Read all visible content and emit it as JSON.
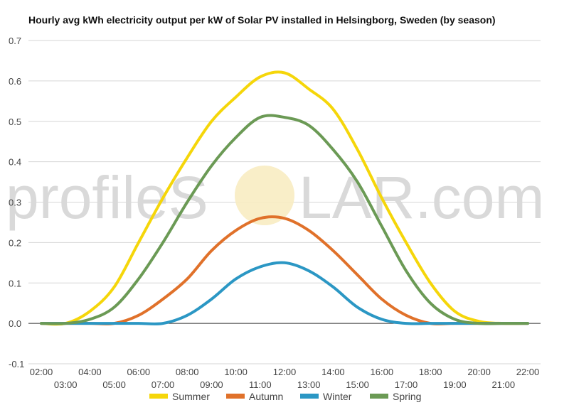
{
  "title": "Hourly avg kWh electricity output per kW of Solar PV installed in Helsingborg, Sweden (by season)",
  "watermark": {
    "left": "profileS",
    "right": "LAR.com"
  },
  "chart_data": {
    "type": "line",
    "title": "Hourly avg kWh electricity output per kW of Solar PV installed in Helsingborg, Sweden (by season)",
    "xlabel": "",
    "ylabel": "",
    "x": [
      "02:00",
      "03:00",
      "04:00",
      "05:00",
      "06:00",
      "07:00",
      "08:00",
      "09:00",
      "10:00",
      "11:00",
      "12:00",
      "13:00",
      "14:00",
      "15:00",
      "16:00",
      "17:00",
      "18:00",
      "19:00",
      "20:00",
      "21:00",
      "22:00"
    ],
    "ylim": [
      -0.1,
      0.7
    ],
    "yticks": [
      "-0.1",
      "0.0",
      "0.1",
      "0.2",
      "0.3",
      "0.4",
      "0.5",
      "0.6",
      "0.7"
    ],
    "grid": true,
    "legend_position": "bottom",
    "series": [
      {
        "name": "Summer",
        "color": "#f5d60a",
        "values": [
          0,
          0,
          0.03,
          0.09,
          0.2,
          0.31,
          0.41,
          0.5,
          0.56,
          0.61,
          0.62,
          0.58,
          0.53,
          0.43,
          0.31,
          0.2,
          0.1,
          0.03,
          0.005,
          0,
          0
        ]
      },
      {
        "name": "Autumn",
        "color": "#e0712a",
        "values": [
          0,
          0,
          0,
          0,
          0.02,
          0.06,
          0.11,
          0.18,
          0.23,
          0.26,
          0.26,
          0.23,
          0.18,
          0.12,
          0.06,
          0.02,
          0,
          0,
          0,
          0,
          0
        ]
      },
      {
        "name": "Winter",
        "color": "#2b97c4",
        "values": [
          0,
          0,
          0,
          0,
          0,
          0,
          0.02,
          0.06,
          0.11,
          0.14,
          0.15,
          0.13,
          0.09,
          0.04,
          0.01,
          0,
          0,
          0,
          0,
          0,
          0
        ]
      },
      {
        "name": "Spring",
        "color": "#6b9a55",
        "values": [
          0,
          0,
          0.01,
          0.04,
          0.11,
          0.2,
          0.3,
          0.39,
          0.46,
          0.51,
          0.51,
          0.49,
          0.43,
          0.35,
          0.24,
          0.13,
          0.05,
          0.01,
          0,
          0,
          0
        ]
      }
    ]
  }
}
